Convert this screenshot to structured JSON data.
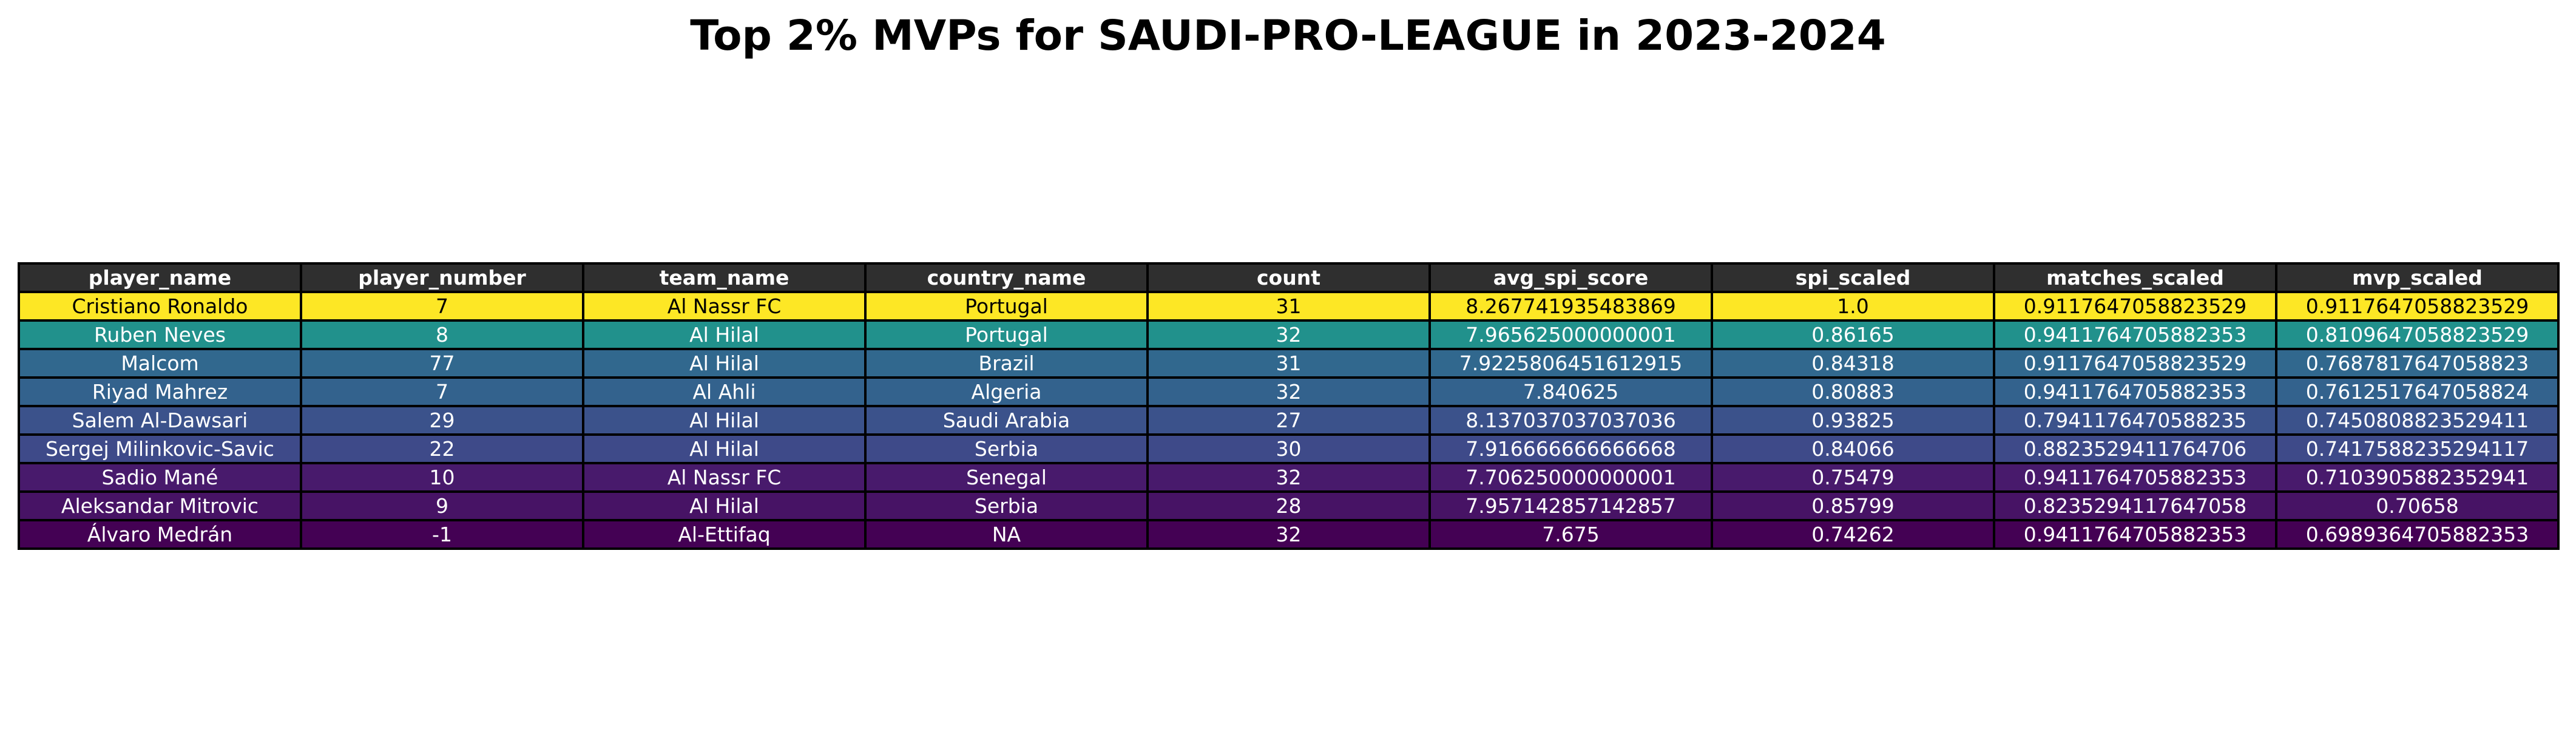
{
  "chart_data": {
    "type": "table",
    "title": "Top 2% MVPs for SAUDI-PRO-LEAGUE in 2023-2024",
    "columns": [
      "player_name",
      "player_number",
      "team_name",
      "country_name",
      "count",
      "avg_spi_score",
      "spi_scaled",
      "matches_scaled",
      "mvp_scaled"
    ],
    "header_color": "#2f2f2f",
    "rows": [
      {
        "cells": [
          "Cristiano Ronaldo",
          "7",
          "Al Nassr FC",
          "Portugal",
          "31",
          "8.267741935483869",
          "1.0",
          "0.9117647058823529",
          "0.9117647058823529"
        ],
        "color": "#fde725",
        "text_color": "#000000"
      },
      {
        "cells": [
          "Ruben Neves",
          "8",
          "Al Hilal",
          "Portugal",
          "32",
          "7.965625000000001",
          "0.86165",
          "0.9411764705882353",
          "0.8109647058823529"
        ],
        "color": "#21918c",
        "text_color": "#ffffff"
      },
      {
        "cells": [
          "Malcom",
          "77",
          "Al Hilal",
          "Brazil",
          "31",
          "7.9225806451612915",
          "0.84318",
          "0.9117647058823529",
          "0.7687817647058823"
        ],
        "color": "#31688e",
        "text_color": "#ffffff"
      },
      {
        "cells": [
          "Riyad Mahrez",
          "7",
          "Al Ahli",
          "Algeria",
          "32",
          "7.840625",
          "0.80883",
          "0.9411764705882353",
          "0.7612517647058824"
        ],
        "color": "#33628d",
        "text_color": "#ffffff"
      },
      {
        "cells": [
          "Salem Al-Dawsari",
          "29",
          "Al Hilal",
          "Saudi Arabia",
          "27",
          "8.137037037037036",
          "0.93825",
          "0.7941176470588235",
          "0.7450808823529411"
        ],
        "color": "#3b528b",
        "text_color": "#ffffff"
      },
      {
        "cells": [
          "Sergej Milinkovic-Savic",
          "22",
          "Al Hilal",
          "Serbia",
          "30",
          "7.916666666666668",
          "0.84066",
          "0.8823529411764706",
          "0.7417588235294117"
        ],
        "color": "#3e4a89",
        "text_color": "#ffffff"
      },
      {
        "cells": [
          "Sadio Mané",
          "10",
          "Al Nassr FC",
          "Senegal",
          "32",
          "7.706250000000001",
          "0.75479",
          "0.9411764705882353",
          "0.7103905882352941"
        ],
        "color": "#481a6c",
        "text_color": "#ffffff"
      },
      {
        "cells": [
          "Aleksandar Mitrovic",
          "9",
          "Al Hilal",
          "Serbia",
          "28",
          "7.957142857142857",
          "0.85799",
          "0.8235294117647058",
          "0.70658"
        ],
        "color": "#471365",
        "text_color": "#ffffff"
      },
      {
        "cells": [
          "Álvaro Medrán",
          "-1",
          "Al-Ettifaq",
          "NA",
          "32",
          "7.675",
          "0.74262",
          "0.9411764705882353",
          "0.6989364705882353"
        ],
        "color": "#440154",
        "text_color": "#ffffff"
      }
    ]
  }
}
